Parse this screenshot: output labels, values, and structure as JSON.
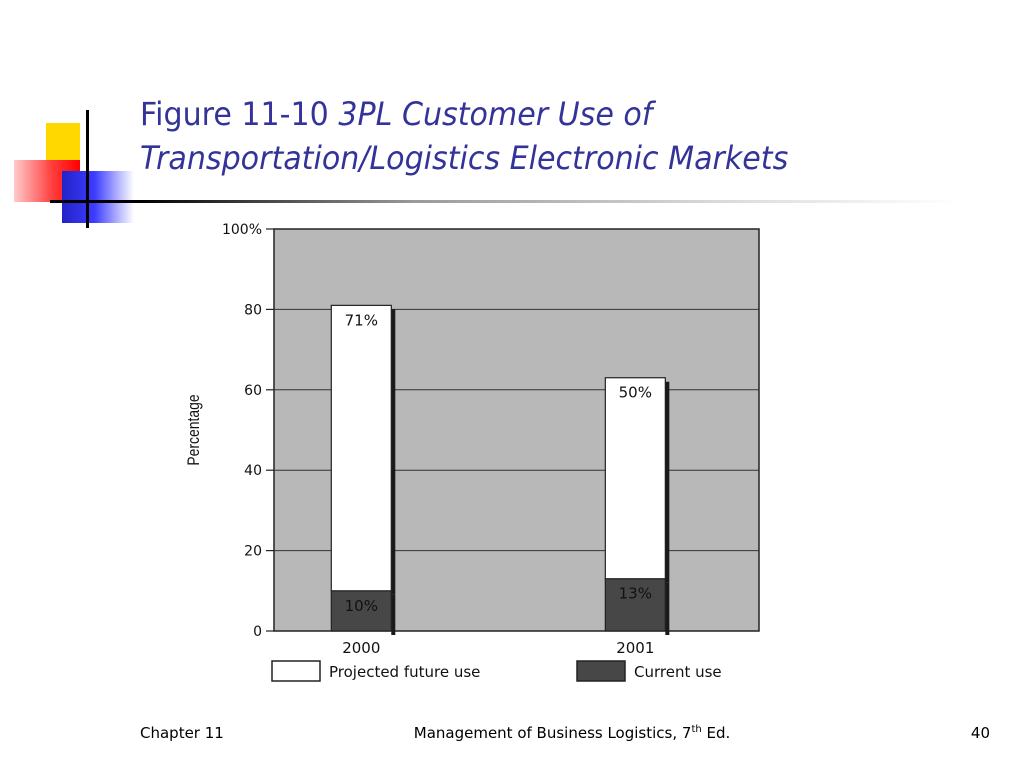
{
  "slide": {
    "title_part1": "Figure 11-10 ",
    "title_part2": "3PL Customer Use of Transportation/Logistics Electronic Markets"
  },
  "footer": {
    "left": "Chapter 11",
    "center_pre": "Management of Business Logistics, 7",
    "center_sup": "th",
    "center_post": " Ed.",
    "page_number": "40"
  },
  "chart_data": {
    "type": "bar",
    "stacked": true,
    "categories": [
      "2000",
      "2001"
    ],
    "series": [
      {
        "name": "Current use",
        "values": [
          10,
          13
        ],
        "labels": [
          "10%",
          "13%"
        ],
        "color": "#474747"
      },
      {
        "name": "Projected future use",
        "values": [
          71,
          50
        ],
        "labels": [
          "71%",
          "50%"
        ],
        "color": "#ffffff"
      }
    ],
    "total_labels_note": "",
    "ylabel": "Percentage",
    "xlabel": "",
    "ylim": [
      0,
      100
    ],
    "yticks": [
      "0",
      "20",
      "40",
      "60",
      "80",
      "100%"
    ],
    "grid": true,
    "legend_position": "bottom",
    "plot_background": "#b8b8b8"
  }
}
